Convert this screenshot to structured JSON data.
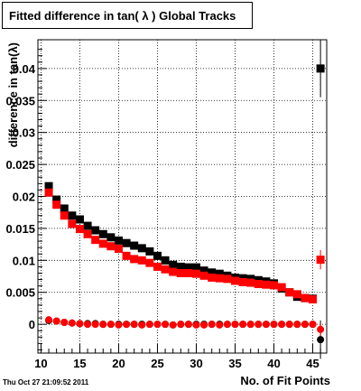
{
  "title": "Fitted difference in tan( λ )  Global Tracks",
  "footer": "Thu Oct 27 21:09:52 2011",
  "chart_data": {
    "type": "scatter",
    "xlabel": "No. of Fit Points",
    "ylabel": "difference in tan(λ)",
    "xlim": [
      9.6,
      46.8
    ],
    "ylim": [
      -0.0045,
      0.0445
    ],
    "grid": true,
    "x_ticks": [
      10,
      15,
      20,
      25,
      30,
      35,
      40,
      45
    ],
    "y_ticks": [
      0,
      0.005,
      0.01,
      0.015,
      0.02,
      0.025,
      0.03,
      0.035,
      0.04
    ],
    "y_tick_labels": [
      "0",
      "0.005",
      "0.01",
      "0.015",
      "0.02",
      "0.025",
      "0.03",
      "0.035",
      "0.04"
    ],
    "series": [
      {
        "marker": "square",
        "color": "#000000",
        "x": [
          11,
          12,
          13,
          14,
          15,
          16,
          17,
          18,
          19,
          20,
          21,
          22,
          23,
          24,
          25,
          26,
          27,
          28,
          29,
          30,
          31,
          32,
          33,
          34,
          35,
          36,
          37,
          38,
          39,
          40,
          41,
          42,
          43,
          44,
          45,
          46
        ],
        "y": [
          0.0216,
          0.0195,
          0.0181,
          0.017,
          0.0164,
          0.0154,
          0.0147,
          0.0141,
          0.0136,
          0.0131,
          0.0127,
          0.0123,
          0.0119,
          0.0114,
          0.0107,
          0.01,
          0.0093,
          0.009,
          0.0089,
          0.0089,
          0.0084,
          0.0081,
          0.0079,
          0.0076,
          0.0073,
          0.0072,
          0.0071,
          0.0069,
          0.0067,
          0.0064,
          0.0056,
          0.005,
          0.0043,
          0.0041,
          0.004,
          0.04
        ],
        "err": [
          0,
          0,
          0,
          0,
          0,
          0,
          0,
          0,
          0,
          0,
          0,
          0,
          0,
          0,
          0,
          0,
          0,
          0,
          0,
          0,
          0,
          0,
          0,
          0,
          0,
          0,
          0,
          0,
          0,
          0,
          0,
          0,
          0,
          0,
          0,
          0.0045
        ]
      },
      {
        "marker": "square",
        "color": "#ff0000",
        "x": [
          11,
          12,
          13,
          14,
          15,
          16,
          17,
          18,
          19,
          20,
          21,
          22,
          23,
          24,
          25,
          26,
          27,
          28,
          29,
          30,
          31,
          32,
          33,
          34,
          35,
          36,
          37,
          38,
          39,
          40,
          41,
          42,
          43,
          44,
          45,
          46
        ],
        "y": [
          0.0206,
          0.0187,
          0.017,
          0.0157,
          0.0149,
          0.0141,
          0.0132,
          0.0126,
          0.0122,
          0.0118,
          0.0107,
          0.0102,
          0.01,
          0.0096,
          0.009,
          0.0086,
          0.0082,
          0.008,
          0.008,
          0.0079,
          0.0076,
          0.0073,
          0.0072,
          0.0071,
          0.0068,
          0.0066,
          0.0065,
          0.0063,
          0.0062,
          0.0061,
          0.0058,
          0.005,
          0.0047,
          0.0041,
          0.0039,
          0.0101
        ],
        "err": [
          0,
          0,
          0,
          0,
          0,
          0,
          0,
          0,
          0,
          0,
          0,
          0,
          0,
          0,
          0,
          0,
          0,
          0,
          0,
          0,
          0,
          0,
          0,
          0,
          0,
          0,
          0,
          0,
          0,
          0,
          0,
          0,
          0,
          0,
          0,
          0.0015
        ]
      },
      {
        "marker": "circle",
        "color": "#000000",
        "x": [
          11,
          12,
          13,
          14,
          15,
          16,
          17,
          18,
          19,
          20,
          21,
          22,
          23,
          24,
          25,
          26,
          27,
          28,
          29,
          30,
          31,
          32,
          33,
          34,
          35,
          36,
          37,
          38,
          39,
          40,
          41,
          42,
          43,
          44,
          45,
          46
        ],
        "y": [
          0.0006,
          0.0005,
          0.0003,
          0.0002,
          0.0001,
          0.0001,
          0.0001,
          0.0,
          0.0,
          0.0,
          0.0,
          0.0,
          0.0,
          0.0,
          0.0,
          0.0,
          -0.0001,
          0.0,
          0.0,
          0.0,
          0.0,
          0.0,
          0.0,
          0.0,
          0.0,
          0.0,
          0.0,
          0.0,
          0.0,
          0.0,
          0.0,
          0.0,
          0.0,
          0.0,
          0.0,
          -0.0024
        ],
        "err": [
          0,
          0,
          0,
          0,
          0,
          0,
          0,
          0,
          0,
          0,
          0,
          0,
          0,
          0,
          0,
          0,
          0,
          0,
          0,
          0,
          0,
          0,
          0,
          0,
          0,
          0,
          0,
          0,
          0,
          0,
          0,
          0,
          0,
          0,
          0,
          0.003
        ]
      },
      {
        "marker": "circle",
        "color": "#ff0000",
        "x": [
          11,
          12,
          13,
          14,
          15,
          16,
          17,
          18,
          19,
          20,
          21,
          22,
          23,
          24,
          25,
          26,
          27,
          28,
          29,
          30,
          31,
          32,
          33,
          34,
          35,
          36,
          37,
          38,
          39,
          40,
          41,
          42,
          43,
          44,
          45,
          46
        ],
        "y": [
          0.0007,
          0.0005,
          0.0003,
          0.0002,
          0.0001,
          0.0,
          0.0,
          0.0,
          0.0,
          -0.0001,
          0.0,
          0.0,
          -0.0001,
          0.0,
          0.0,
          0.0,
          -0.0001,
          0.0,
          0.0,
          -0.0001,
          -0.0001,
          0.0,
          -0.0001,
          0.0,
          0.0,
          0.0,
          0.0,
          0.0,
          0.0,
          0.0,
          0.0,
          0.0,
          0.0,
          0.0,
          0.0,
          -0.0008
        ],
        "err": [
          0,
          0,
          0,
          0,
          0,
          0,
          0,
          0,
          0,
          0,
          0,
          0,
          0,
          0,
          0,
          0,
          0,
          0,
          0,
          0,
          0,
          0,
          0,
          0,
          0,
          0,
          0,
          0,
          0,
          0,
          0,
          0,
          0,
          0,
          0,
          0.001
        ]
      }
    ]
  }
}
